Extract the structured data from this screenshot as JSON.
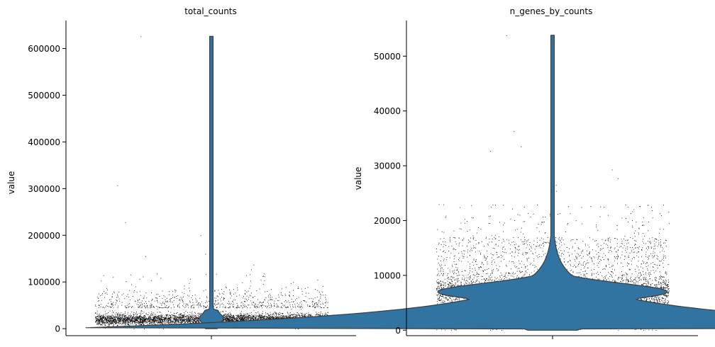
{
  "chart_data": [
    {
      "type": "violin",
      "title": "total_counts",
      "ylabel": "value",
      "xlabel": "",
      "ylim": [
        -15000,
        660000
      ],
      "yticks": [
        0,
        100000,
        200000,
        300000,
        400000,
        500000,
        600000
      ],
      "yticklabels": [
        "0",
        "100000",
        "200000",
        "300000",
        "400000",
        "500000",
        "600000"
      ],
      "grid": false,
      "violin_color": "#3274a1",
      "point_color": "#000000",
      "distribution": {
        "min": 0,
        "max": 626000,
        "bulk_center": 20000,
        "bulk_low": 5000,
        "bulk_high": 45000,
        "outliers": [
          307000,
          200000,
          160000,
          155000,
          137000,
          127000,
          112000,
          228000,
          626000
        ]
      }
    },
    {
      "type": "violin",
      "title": "n_genes_by_counts",
      "ylabel": "value",
      "xlabel": "",
      "ylim": [
        -1000,
        56500
      ],
      "yticks": [
        0,
        10000,
        20000,
        30000,
        40000,
        50000
      ],
      "yticklabels": [
        "0",
        "10000",
        "20000",
        "30000",
        "40000",
        "50000"
      ],
      "grid": false,
      "violin_color": "#3274a1",
      "point_color": "#000000",
      "distribution": {
        "min": 0,
        "max": 53800,
        "bulk_center": 7000,
        "bulk_low": 500,
        "bulk_high": 20000,
        "outliers": [
          53800,
          36300,
          33500,
          32700,
          29300,
          27700,
          26500,
          25400
        ]
      }
    }
  ]
}
